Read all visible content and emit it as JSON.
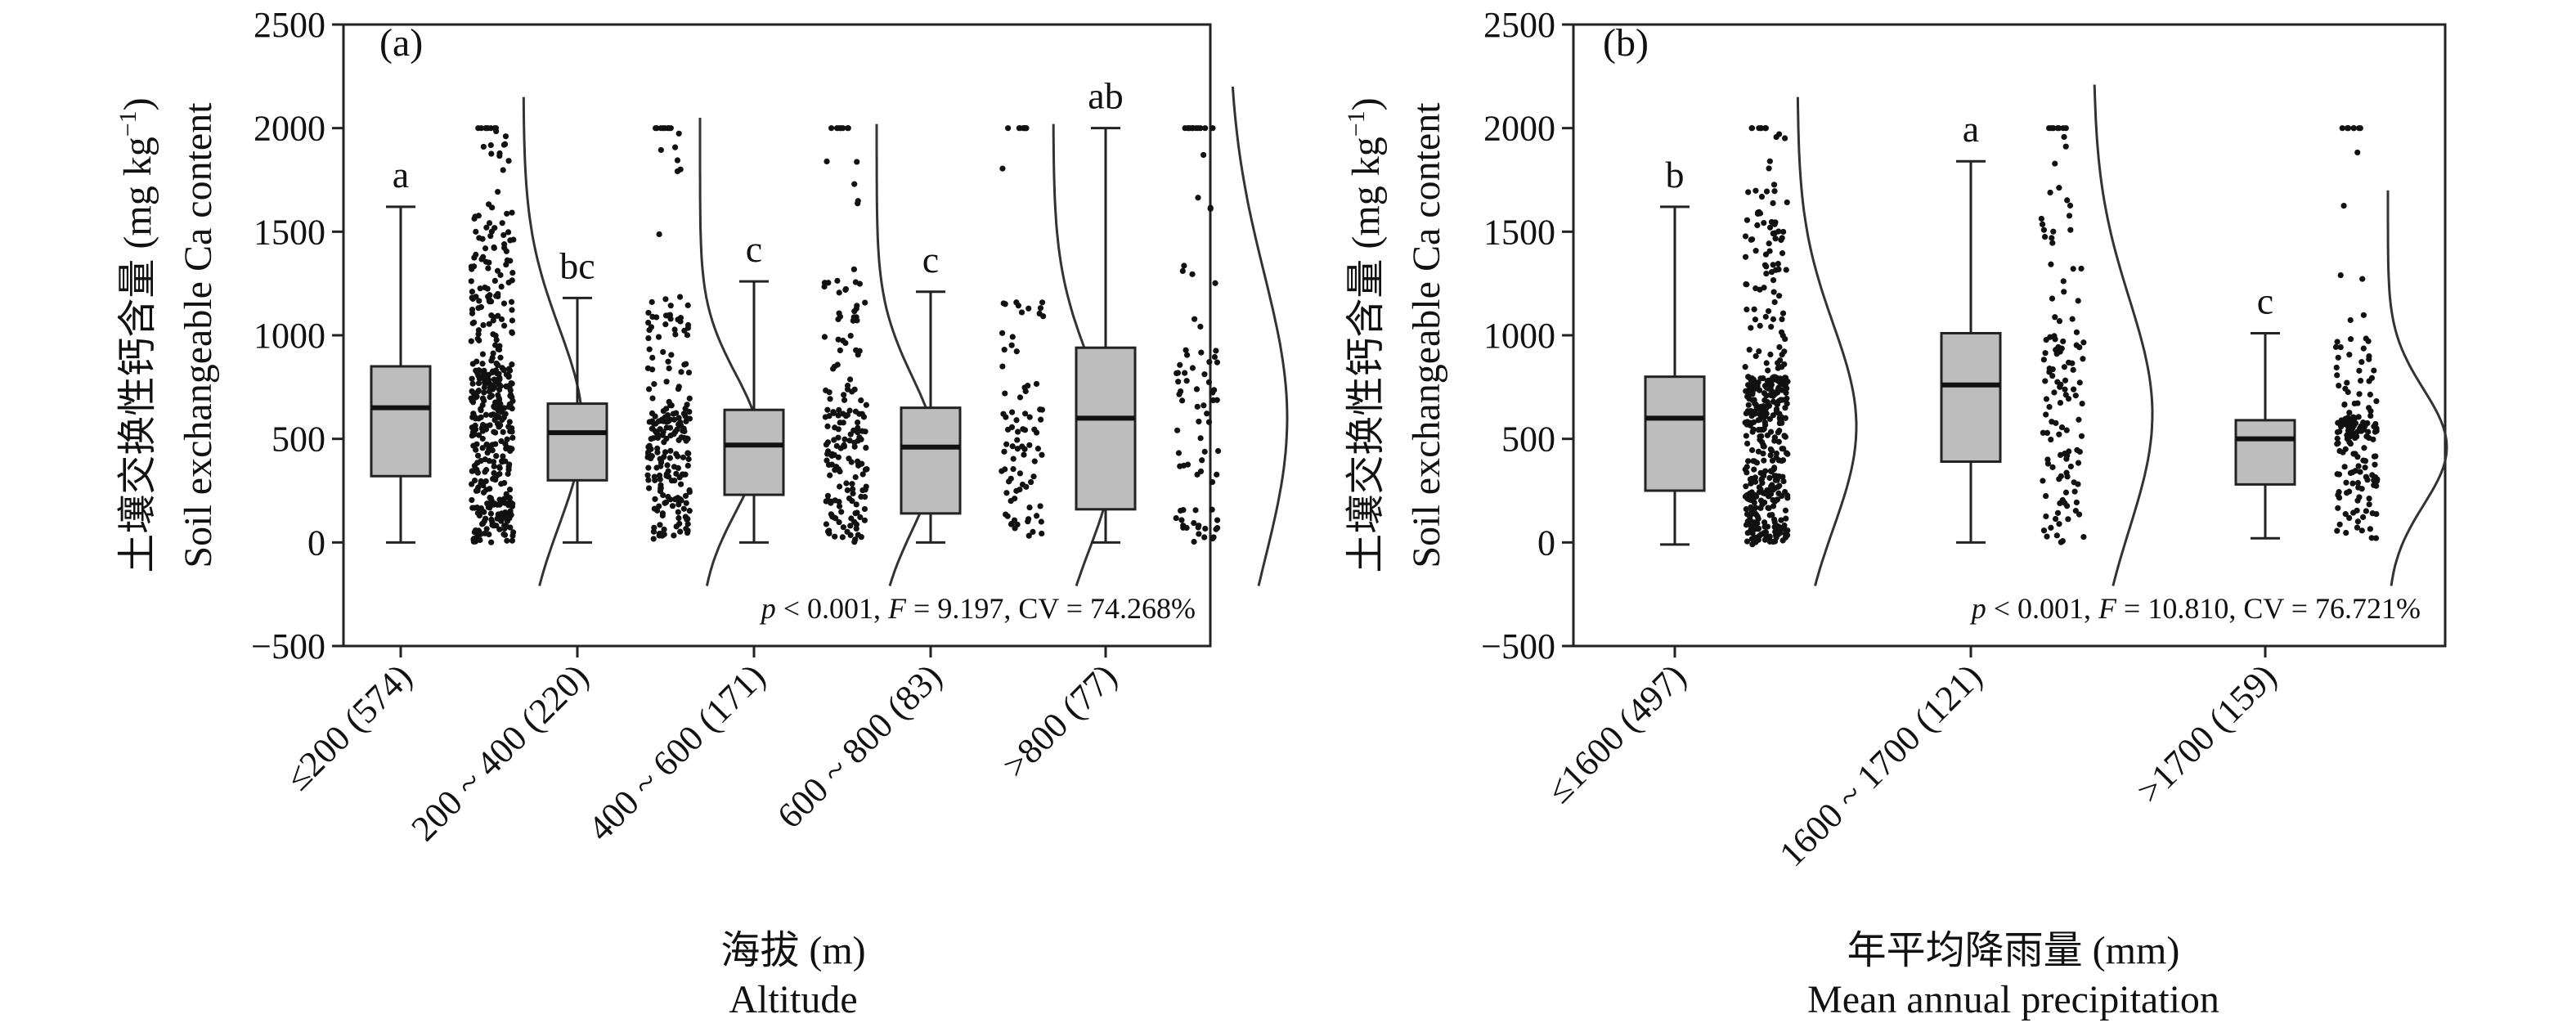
{
  "chart_data": [
    {
      "type": "box",
      "panel_label": "(a)",
      "ylabel_cn": "土壤交换性钙含量 (mg kg",
      "ylabel_unit_sup": "−1",
      "ylabel_close": ")",
      "ylabel_en": "Soil exchangeable Ca content",
      "xlabel_cn": "海拔 (m)",
      "xlabel_en": "Altitude",
      "stats_p": "p",
      "stats_p_val": " < 0.001, ",
      "stats_f": "F",
      "stats_f_val": " = 9.197, CV = 74.268%",
      "ylim": [
        -500,
        2500
      ],
      "yticks": [
        -500,
        0,
        500,
        1000,
        1500,
        2000,
        2500
      ],
      "ytick_labels": [
        "−500",
        "0",
        "500",
        "1000",
        "1500",
        "2000",
        "2500"
      ],
      "categories": [
        "≤200 (574)",
        "200 ~ 400 (220)",
        "400 ~ 600 (171)",
        "600 ~ 800 (83)",
        ">800 (77)"
      ],
      "boxes": [
        {
          "min": 0,
          "q1": 320,
          "median": 650,
          "q3": 850,
          "max": 1620,
          "letter": "a",
          "n": 574,
          "dmax": 2150,
          "dmin": -210,
          "dmode": 560
        },
        {
          "min": 0,
          "q1": 300,
          "median": 530,
          "q3": 670,
          "max": 1180,
          "letter": "bc",
          "n": 220,
          "dmax": 2050,
          "dmin": -210,
          "dmode": 480
        },
        {
          "min": 0,
          "q1": 230,
          "median": 470,
          "q3": 640,
          "max": 1260,
          "letter": "c",
          "n": 171,
          "dmax": 2020,
          "dmin": -210,
          "dmode": 430
        },
        {
          "min": 0,
          "q1": 140,
          "median": 460,
          "q3": 650,
          "max": 1210,
          "letter": "c",
          "n": 83,
          "dmax": 2020,
          "dmin": -210,
          "dmode": 420
        },
        {
          "min": 0,
          "q1": 160,
          "median": 600,
          "q3": 940,
          "max": 2000,
          "letter": "ab",
          "n": 77,
          "dmax": 2200,
          "dmin": -210,
          "dmode": 600
        }
      ]
    },
    {
      "type": "box",
      "panel_label": "(b)",
      "ylabel_cn": "土壤交换性钙含量 (mg kg",
      "ylabel_unit_sup": "−1",
      "ylabel_close": ")",
      "ylabel_en": "Soil exchangeable Ca content",
      "xlabel_cn": "年平均降雨量 (mm)",
      "xlabel_en": "Mean annual precipitation",
      "stats_p": "p",
      "stats_p_val": " < 0.001, ",
      "stats_f": "F",
      "stats_f_val": " = 10.810, CV = 76.721%",
      "ylim": [
        -500,
        2500
      ],
      "yticks": [
        -500,
        0,
        500,
        1000,
        1500,
        2000,
        2500
      ],
      "ytick_labels": [
        "−500",
        "0",
        "500",
        "1000",
        "1500",
        "2000",
        "2500"
      ],
      "categories": [
        "≤1600 (497)",
        "1600 ~ 1700 (121)",
        ">1700 (159)"
      ],
      "boxes": [
        {
          "min": -10,
          "q1": 250,
          "median": 600,
          "q3": 800,
          "max": 1620,
          "letter": "b",
          "n": 497,
          "dmax": 2150,
          "dmin": -210,
          "dmode": 560
        },
        {
          "min": 0,
          "q1": 390,
          "median": 760,
          "q3": 1010,
          "max": 1840,
          "letter": "a",
          "n": 121,
          "dmax": 2210,
          "dmin": -210,
          "dmode": 620
        },
        {
          "min": 20,
          "q1": 280,
          "median": 500,
          "q3": 590,
          "max": 1010,
          "letter": "c",
          "n": 159,
          "dmax": 1700,
          "dmin": -210,
          "dmode": 460
        }
      ]
    }
  ]
}
